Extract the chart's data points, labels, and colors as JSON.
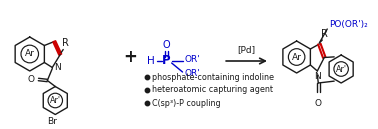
{
  "bg_color": "#ffffff",
  "bullet_points": [
    "phosphate-containing indoline",
    "heteroatomic capturing agent",
    "C(sp³)-P coupling"
  ],
  "arrow_text": "[Pd]",
  "blue": "#0000cc",
  "red": "#cc0000",
  "black": "#1a1a1a",
  "figsize": [
    3.78,
    1.29
  ],
  "dpi": 100
}
